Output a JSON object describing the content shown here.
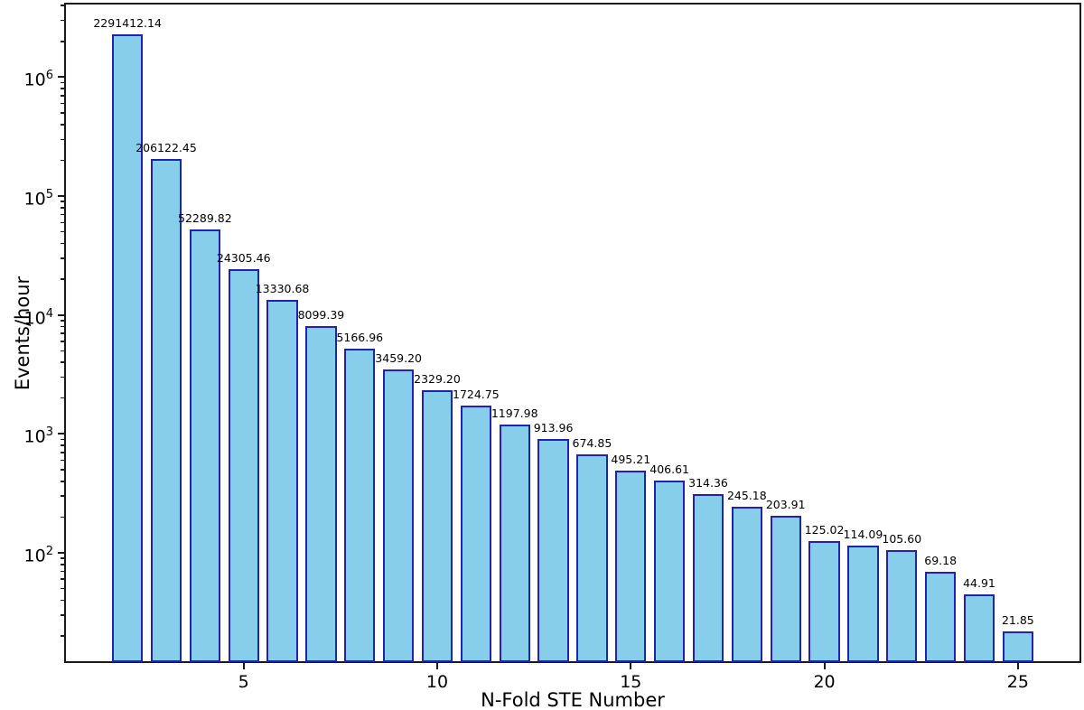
{
  "figure": {
    "background": "#ffffff",
    "frame_color": "#1a1a1a"
  },
  "chart_data": {
    "type": "bar",
    "title": "",
    "xlabel": "N-Fold STE Number",
    "ylabel": "Events/hour",
    "yscale": "log",
    "grid": false,
    "legend": null,
    "x": [
      2,
      3,
      4,
      5,
      6,
      7,
      8,
      9,
      10,
      11,
      12,
      13,
      14,
      15,
      16,
      17,
      18,
      19,
      20,
      21,
      22,
      23,
      24,
      25
    ],
    "values": [
      2291412.14,
      206122.45,
      52289.82,
      24305.46,
      13330.68,
      8099.39,
      5166.96,
      3459.2,
      2329.2,
      1724.75,
      1197.98,
      913.96,
      674.85,
      495.21,
      406.61,
      314.36,
      245.18,
      203.91,
      125.02,
      114.09,
      105.6,
      69.18,
      44.91,
      21.85
    ],
    "bar_labels": [
      "2291412.14",
      "206122.45",
      "52289.82",
      "24305.46",
      "13330.68",
      "8099.39",
      "5166.96",
      "3459.20",
      "2329.20",
      "1724.75",
      "1197.98",
      "913.96",
      "674.85",
      "495.21",
      "406.61",
      "314.36",
      "245.18",
      "203.91",
      "125.02",
      "114.09",
      "105.60",
      "69.18",
      "44.91",
      "21.85"
    ],
    "bar_color": "#87CEEB",
    "bar_edge_color": "#2222b2",
    "bar_width_units": 0.8,
    "xlim": [
      0.41,
      26.59
    ],
    "ylim_log10": [
      1.0885,
      6.6111
    ],
    "x_tick_values": [
      5,
      10,
      15,
      20,
      25
    ],
    "x_tick_labels": [
      "5",
      "10",
      "15",
      "20",
      "25"
    ],
    "y_tick_base": "10",
    "y_tick_exponents": [
      2,
      3,
      4,
      5,
      6
    ],
    "y_minor_ticks_per_decade": [
      2,
      3,
      4,
      5,
      6,
      7,
      8,
      9
    ]
  }
}
